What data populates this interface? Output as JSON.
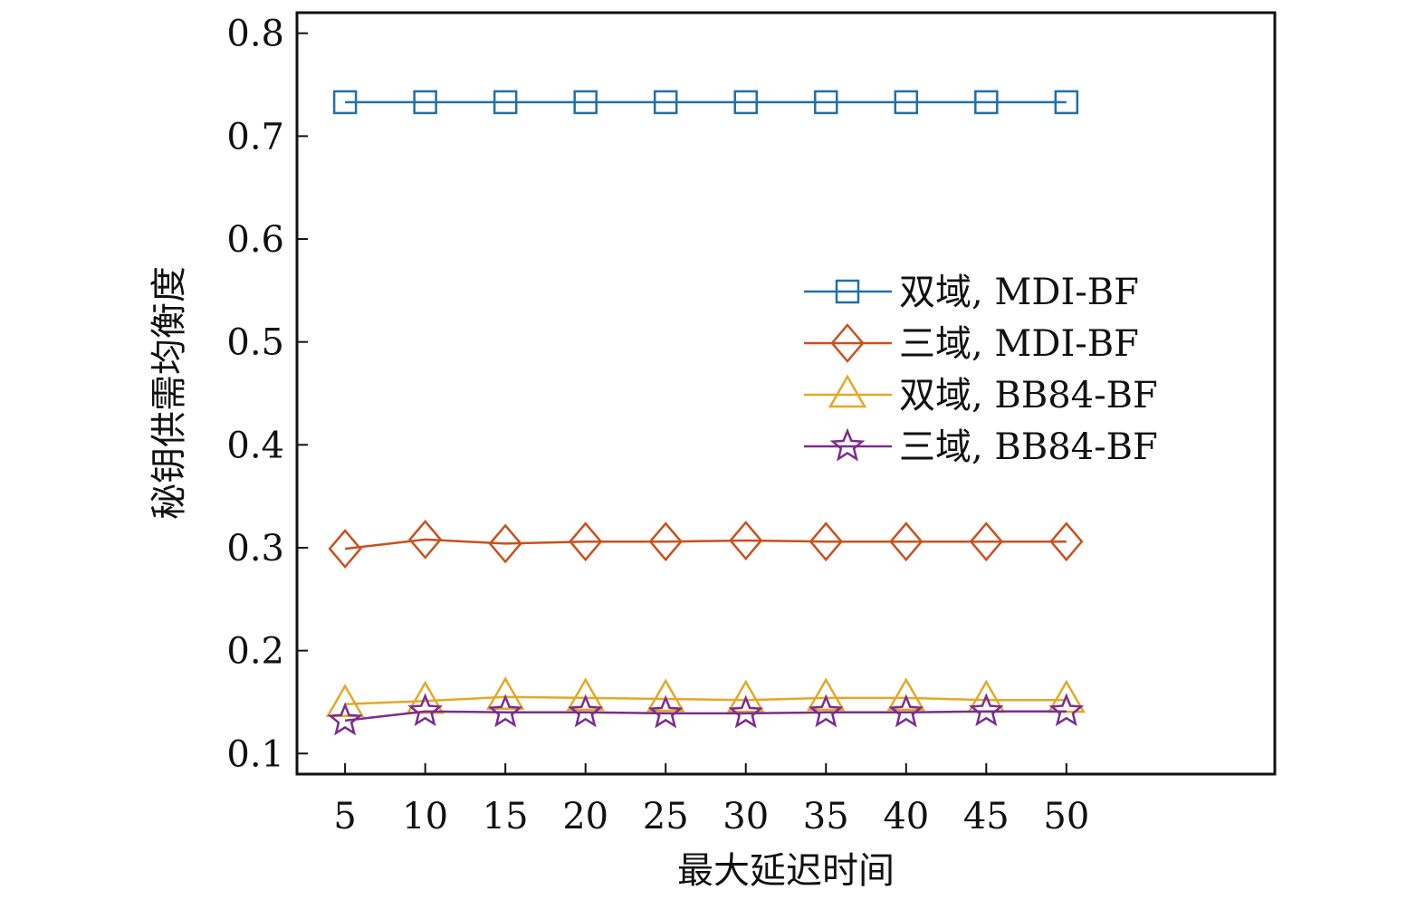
{
  "chart_data": {
    "type": "line",
    "xlabel": "最大延迟时间",
    "ylabel": "秘钥供需均衡度",
    "xlim": [
      2,
      63
    ],
    "ylim": [
      0.08,
      0.82
    ],
    "x": [
      5,
      10,
      15,
      20,
      25,
      30,
      35,
      40,
      45,
      50
    ],
    "x_ticks": [
      "5",
      "10",
      "15",
      "20",
      "25",
      "30",
      "35",
      "40",
      "45",
      "50"
    ],
    "y_ticks": [
      0.1,
      0.2,
      0.3,
      0.4,
      0.5,
      0.6,
      0.7,
      0.8
    ],
    "y_tick_labels": [
      "0.1",
      "0.2",
      "0.3",
      "0.4",
      "0.5",
      "0.6",
      "0.7",
      "0.8"
    ],
    "grid": false,
    "legend_position": "center-right",
    "series": [
      {
        "name": "双域, MDI-BF",
        "color": "#1f6fae",
        "marker": "square",
        "values": [
          0.733,
          0.733,
          0.733,
          0.733,
          0.733,
          0.733,
          0.733,
          0.733,
          0.733,
          0.733
        ]
      },
      {
        "name": "三域, MDI-BF",
        "color": "#c9501c",
        "marker": "diamond",
        "values": [
          0.299,
          0.308,
          0.304,
          0.306,
          0.306,
          0.307,
          0.306,
          0.306,
          0.306,
          0.306
        ]
      },
      {
        "name": "双域, BB84-BF",
        "color": "#e3a826",
        "marker": "triangle",
        "values": [
          0.148,
          0.151,
          0.155,
          0.154,
          0.153,
          0.152,
          0.154,
          0.154,
          0.152,
          0.152
        ]
      },
      {
        "name": "三域, BB84-BF",
        "color": "#7b2d8e",
        "marker": "star",
        "values": [
          0.132,
          0.141,
          0.14,
          0.14,
          0.139,
          0.139,
          0.14,
          0.14,
          0.141,
          0.141
        ]
      }
    ]
  }
}
